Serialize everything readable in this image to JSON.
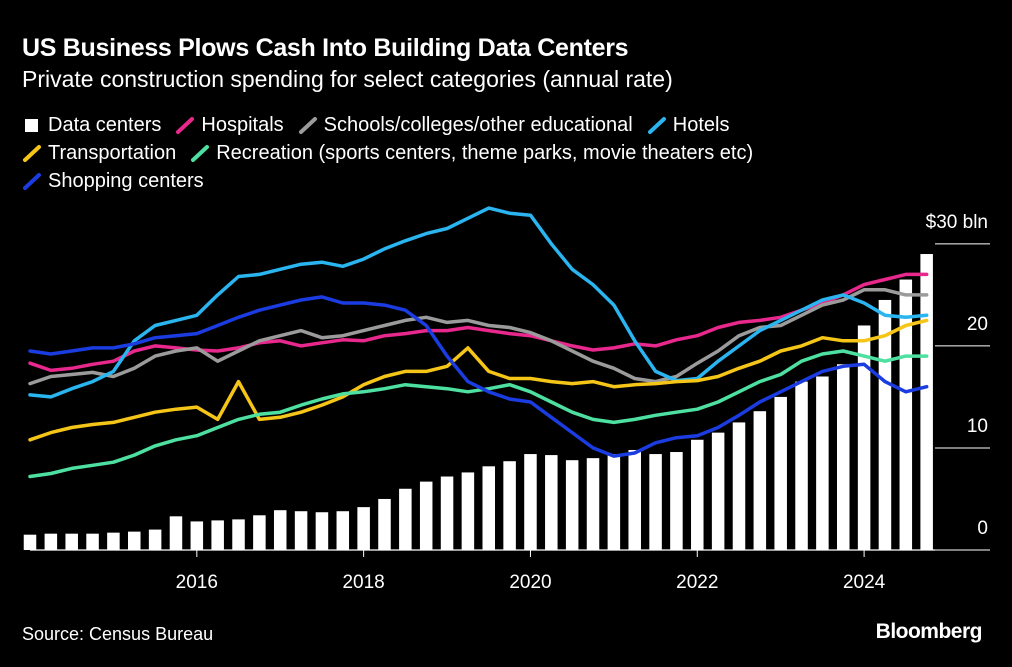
{
  "chart_data": {
    "type": "combo",
    "title": "US Business Plows Cash Into Building Data Centers",
    "subtitle": "Private construction spending for select categories (annual rate)",
    "source": "Source: Census Bureau",
    "brand": "Bloomberg",
    "x": [
      2014,
      2014.25,
      2014.5,
      2014.75,
      2015,
      2015.25,
      2015.5,
      2015.75,
      2016,
      2016.25,
      2016.5,
      2016.75,
      2017,
      2017.25,
      2017.5,
      2017.75,
      2018,
      2018.25,
      2018.5,
      2018.75,
      2019,
      2019.25,
      2019.5,
      2019.75,
      2020,
      2020.25,
      2020.5,
      2020.75,
      2021,
      2021.25,
      2021.5,
      2021.75,
      2022,
      2022.25,
      2022.5,
      2022.75,
      2023,
      2023.25,
      2023.5,
      2023.75,
      2024,
      2024.25,
      2024.5,
      2024.75
    ],
    "xlim": [
      2014,
      2024.85
    ],
    "xticks": [
      2016,
      2018,
      2020,
      2022,
      2024
    ],
    "ylim": [
      0,
      34
    ],
    "yticks": [
      0,
      10,
      20,
      {
        "value": 30,
        "label": "$30 bln"
      }
    ],
    "series": [
      {
        "name": "Data centers",
        "type": "bar",
        "color": "#ffffff",
        "values": [
          1.5,
          1.6,
          1.6,
          1.6,
          1.7,
          1.8,
          2.0,
          3.3,
          2.8,
          2.9,
          3.0,
          3.4,
          3.9,
          3.8,
          3.7,
          3.8,
          4.2,
          5.0,
          6.0,
          6.7,
          7.2,
          7.6,
          8.2,
          8.7,
          9.4,
          9.3,
          8.8,
          9.0,
          9.4,
          9.8,
          9.4,
          9.6,
          10.8,
          11.5,
          12.5,
          13.6,
          15.0,
          16.5,
          17.0,
          18.2,
          22.0,
          24.5,
          26.5,
          29.0
        ]
      },
      {
        "name": "Hospitals",
        "type": "line",
        "color": "#e8288c",
        "values": [
          18.3,
          17.6,
          17.8,
          18.2,
          18.5,
          19.5,
          20.0,
          19.8,
          19.6,
          19.5,
          19.8,
          20.3,
          20.5,
          20.0,
          20.3,
          20.6,
          20.5,
          21.0,
          21.2,
          21.5,
          21.5,
          21.8,
          21.5,
          21.2,
          21.0,
          20.5,
          20.0,
          19.6,
          19.8,
          20.2,
          20.0,
          20.6,
          21.0,
          21.8,
          22.3,
          22.5,
          22.8,
          23.5,
          24.2,
          25.0,
          26.0,
          26.5,
          27.0,
          27.0
        ]
      },
      {
        "name": "Schools/colleges/other educational",
        "type": "line",
        "color": "#9b9b9b",
        "values": [
          16.3,
          17.0,
          17.2,
          17.4,
          17.0,
          17.8,
          19.0,
          19.5,
          19.8,
          18.5,
          19.5,
          20.5,
          21.0,
          21.5,
          20.8,
          21.0,
          21.5,
          22.0,
          22.5,
          22.8,
          22.3,
          22.5,
          22.0,
          21.8,
          21.3,
          20.5,
          19.5,
          18.5,
          17.8,
          16.8,
          16.5,
          17.0,
          18.3,
          19.5,
          21.0,
          21.8,
          22.0,
          23.0,
          24.0,
          24.5,
          25.5,
          25.5,
          25.0,
          25.0
        ]
      },
      {
        "name": "Hotels",
        "type": "line",
        "color": "#2ab4f0",
        "values": [
          15.2,
          15.0,
          15.8,
          16.5,
          17.5,
          20.5,
          22.0,
          22.5,
          23.0,
          25.0,
          26.8,
          27.0,
          27.5,
          28.0,
          28.2,
          27.8,
          28.5,
          29.5,
          30.3,
          31.0,
          31.5,
          32.5,
          33.5,
          33.0,
          32.8,
          30.0,
          27.5,
          26.0,
          24.0,
          20.5,
          17.5,
          16.6,
          16.8,
          18.5,
          20.0,
          21.5,
          22.5,
          23.5,
          24.5,
          25.0,
          24.2,
          23.0,
          22.8,
          23.0
        ]
      },
      {
        "name": "Transportation",
        "type": "line",
        "color": "#f5c518",
        "values": [
          10.8,
          11.5,
          12.0,
          12.3,
          12.5,
          13.0,
          13.5,
          13.8,
          14.0,
          12.8,
          16.5,
          12.8,
          13.0,
          13.5,
          14.2,
          15.0,
          16.2,
          17.0,
          17.5,
          17.5,
          18.0,
          19.8,
          17.5,
          16.8,
          16.8,
          16.5,
          16.3,
          16.5,
          16.0,
          16.2,
          16.3,
          16.5,
          16.6,
          17.0,
          17.8,
          18.5,
          19.5,
          20.0,
          20.8,
          20.5,
          20.5,
          21.0,
          22.0,
          22.5
        ]
      },
      {
        "name": "Recreation (sports centers, theme parks, movie theaters etc)",
        "type": "line",
        "color": "#4ee0a0",
        "values": [
          7.2,
          7.5,
          8.0,
          8.3,
          8.6,
          9.3,
          10.2,
          10.8,
          11.2,
          12.0,
          12.8,
          13.3,
          13.5,
          14.2,
          14.8,
          15.3,
          15.5,
          15.8,
          16.2,
          16.0,
          15.8,
          15.5,
          15.8,
          16.2,
          15.5,
          14.5,
          13.5,
          12.8,
          12.5,
          12.8,
          13.2,
          13.5,
          13.8,
          14.5,
          15.5,
          16.5,
          17.2,
          18.5,
          19.2,
          19.5,
          19.0,
          18.5,
          19.0,
          19.0
        ]
      },
      {
        "name": "Shopping centers",
        "type": "line",
        "color": "#1a3ce0",
        "values": [
          19.5,
          19.2,
          19.5,
          19.8,
          19.8,
          20.2,
          20.8,
          21.0,
          21.2,
          22.0,
          22.8,
          23.5,
          24.0,
          24.5,
          24.8,
          24.2,
          24.2,
          24.0,
          23.5,
          22.0,
          19.0,
          16.5,
          15.5,
          14.8,
          14.5,
          13.0,
          11.5,
          10.0,
          9.2,
          9.5,
          10.5,
          11.0,
          11.2,
          12.0,
          13.2,
          14.5,
          15.5,
          16.5,
          17.5,
          18.0,
          18.2,
          16.5,
          15.5,
          16.0
        ]
      }
    ]
  }
}
